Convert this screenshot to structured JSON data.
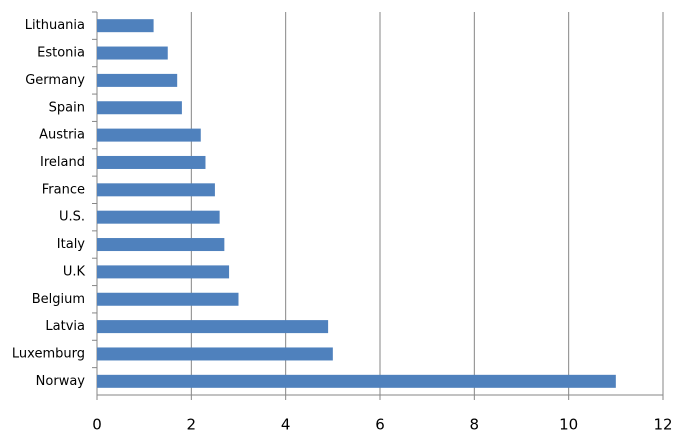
{
  "chart_data": {
    "type": "bar",
    "orientation": "horizontal",
    "categories": [
      "Lithuania",
      "Estonia",
      "Germany",
      "Spain",
      "Austria",
      "Ireland",
      "France",
      "U.S.",
      "Italy",
      "U.K",
      "Belgium",
      "Latvia",
      "Luxemburg",
      "Norway"
    ],
    "values": [
      1.2,
      1.5,
      1.7,
      1.8,
      2.2,
      2.3,
      2.5,
      2.6,
      2.7,
      2.8,
      3.0,
      4.9,
      5.0,
      11.0
    ],
    "color": "#4f81bd",
    "xlim": [
      0,
      12
    ],
    "xticks": [
      0,
      2,
      4,
      6,
      8,
      10,
      12
    ],
    "grid": true
  }
}
